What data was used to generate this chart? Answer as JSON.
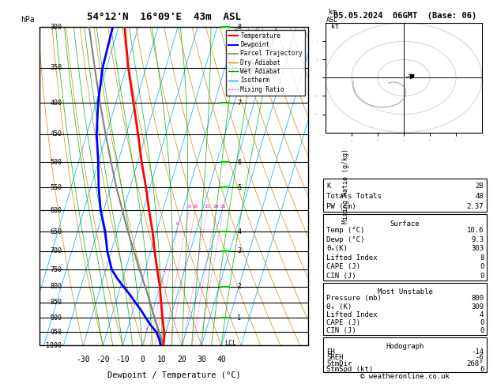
{
  "title_left": "54°12'N  16°09'E  43m  ASL",
  "title_right": "05.05.2024  06GMT  (Base: 06)",
  "xlabel": "Dewpoint / Temperature (°C)",
  "ylabel_left": "hPa",
  "ylabel_right_mr": "Mixing Ratio (g/kg)",
  "pressure_levels": [
    300,
    350,
    400,
    450,
    500,
    550,
    600,
    650,
    700,
    750,
    800,
    850,
    900,
    950,
    1000
  ],
  "temp_profile_p": [
    1000,
    975,
    950,
    925,
    900,
    875,
    850,
    825,
    800,
    775,
    750,
    700,
    650,
    600,
    550,
    500,
    450,
    400,
    350,
    300
  ],
  "temp_profile_t": [
    10.6,
    10.0,
    9.0,
    7.5,
    6.0,
    4.5,
    3.0,
    1.5,
    0.0,
    -2.0,
    -4.0,
    -8.0,
    -12.0,
    -17.0,
    -22.0,
    -28.0,
    -34.0,
    -41.0,
    -49.0,
    -57.0
  ],
  "dewp_profile_p": [
    1000,
    975,
    950,
    925,
    900,
    875,
    850,
    825,
    800,
    775,
    750,
    700,
    650,
    600,
    550,
    500,
    450,
    400,
    350,
    300
  ],
  "dewp_profile_t": [
    9.3,
    7.5,
    5.0,
    1.0,
    -2.5,
    -6.0,
    -10.0,
    -14.0,
    -18.5,
    -23.0,
    -27.0,
    -32.0,
    -36.0,
    -41.5,
    -46.0,
    -50.0,
    -55.0,
    -59.0,
    -62.0,
    -63.0
  ],
  "parcel_profile_p": [
    1000,
    950,
    900,
    850,
    800,
    750,
    700,
    650,
    600,
    550,
    500,
    450,
    400,
    350,
    300
  ],
  "parcel_profile_t": [
    10.6,
    6.5,
    2.0,
    -2.5,
    -7.5,
    -13.0,
    -18.5,
    -24.5,
    -30.5,
    -37.0,
    -43.5,
    -50.5,
    -58.0,
    -66.0,
    -75.0
  ],
  "color_temp": "#ff0000",
  "color_dewp": "#0000ff",
  "color_parcel": "#808080",
  "color_dry_adiabat": "#cc8800",
  "color_wet_adiabat": "#00aa00",
  "color_isotherm": "#00aaff",
  "color_mixing_ratio": "#ff00aa",
  "color_background": "#ffffff",
  "lcl_pressure": 990,
  "info_K": 28,
  "info_TT": 48,
  "info_PW": 2.37,
  "surf_temp": 10.6,
  "surf_dewp": 9.3,
  "surf_theta_e": 303,
  "surf_LI": 8,
  "surf_CAPE": 0,
  "surf_CIN": 0,
  "mu_pressure": 800,
  "mu_theta_e": 309,
  "mu_LI": 4,
  "mu_CAPE": 0,
  "mu_CIN": 0,
  "hodo_EH": -14,
  "hodo_SREH": -6,
  "hodo_StmDir": 268,
  "hodo_StmSpd": 6,
  "copyright": "© weatheronline.co.uk"
}
